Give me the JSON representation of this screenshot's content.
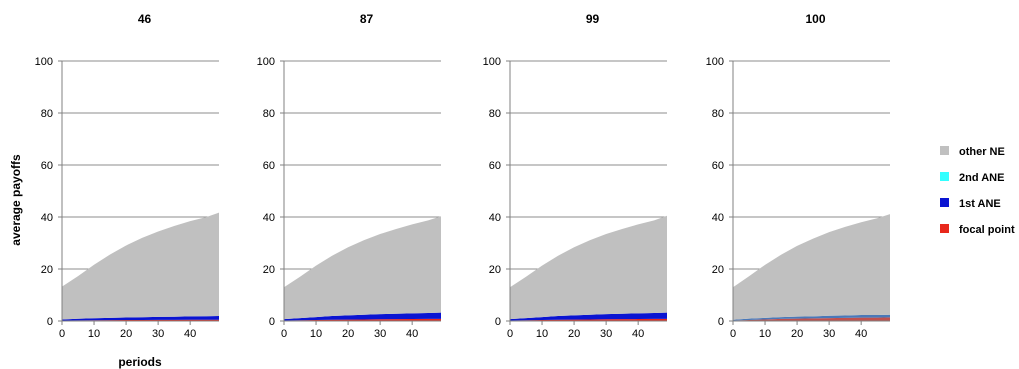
{
  "chart_data": [
    {
      "type": "area",
      "title": "46",
      "stacked": true,
      "x": [
        0,
        5,
        10,
        15,
        20,
        25,
        30,
        35,
        40,
        45,
        49
      ],
      "xticks": [
        "0",
        "10",
        "20",
        "30",
        "40"
      ],
      "yticks": [
        "0",
        "20",
        "40",
        "60",
        "80",
        "100"
      ],
      "ylim": [
        0,
        100
      ],
      "xlim": [
        0,
        49
      ],
      "grid": true,
      "series": [
        {
          "name": "focal point",
          "color": "#e8281c",
          "values": [
            0.2,
            0.25,
            0.3,
            0.35,
            0.4,
            0.4,
            0.45,
            0.45,
            0.5,
            0.5,
            0.5
          ]
        },
        {
          "name": "1st ANE",
          "color": "#0a14d2",
          "values": [
            0.4,
            0.6,
            0.75,
            0.85,
            0.95,
            1.05,
            1.15,
            1.2,
            1.3,
            1.35,
            1.4
          ]
        },
        {
          "name": "2nd ANE",
          "color": "#33ffff",
          "values": [
            0,
            0,
            0,
            0,
            0,
            0,
            0,
            0,
            0,
            0,
            0
          ]
        },
        {
          "name": "other NE",
          "color": "#c0c0c0",
          "values": [
            12.6,
            16.4,
            20.6,
            24.4,
            27.7,
            30.5,
            32.8,
            34.9,
            36.6,
            38.1,
            39.8
          ]
        }
      ]
    },
    {
      "type": "area",
      "title": "87",
      "stacked": true,
      "x": [
        0,
        5,
        10,
        15,
        20,
        25,
        30,
        35,
        40,
        45,
        49
      ],
      "xticks": [
        "0",
        "10",
        "20",
        "30",
        "40"
      ],
      "yticks": [
        "0",
        "20",
        "40",
        "60",
        "80",
        "100"
      ],
      "ylim": [
        0,
        100
      ],
      "xlim": [
        0,
        49
      ],
      "grid": true,
      "series": [
        {
          "name": "focal point",
          "color": "#e8281c",
          "values": [
            0.2,
            0.3,
            0.4,
            0.5,
            0.55,
            0.6,
            0.65,
            0.7,
            0.75,
            0.8,
            0.8
          ]
        },
        {
          "name": "1st ANE",
          "color": "#0a14d2",
          "values": [
            0.5,
            0.8,
            1.1,
            1.4,
            1.6,
            1.8,
            2.0,
            2.1,
            2.2,
            2.3,
            2.4
          ]
        },
        {
          "name": "2nd ANE",
          "color": "#33ffff",
          "values": [
            0,
            0,
            0,
            0,
            0,
            0,
            0,
            0,
            0,
            0,
            0
          ]
        },
        {
          "name": "other NE",
          "color": "#c0c0c0",
          "values": [
            12.3,
            15.9,
            19.8,
            23.2,
            26.2,
            28.7,
            30.8,
            32.6,
            34.2,
            35.6,
            37.1
          ]
        }
      ]
    },
    {
      "type": "area",
      "title": "99",
      "stacked": true,
      "x": [
        0,
        5,
        10,
        15,
        20,
        25,
        30,
        35,
        40,
        45,
        49
      ],
      "xticks": [
        "0",
        "10",
        "20",
        "30",
        "40"
      ],
      "yticks": [
        "0",
        "20",
        "40",
        "60",
        "80",
        "100"
      ],
      "ylim": [
        0,
        100
      ],
      "xlim": [
        0,
        49
      ],
      "grid": true,
      "series": [
        {
          "name": "focal point",
          "color": "#e8281c",
          "values": [
            0.2,
            0.3,
            0.4,
            0.5,
            0.55,
            0.6,
            0.65,
            0.7,
            0.75,
            0.8,
            0.8
          ]
        },
        {
          "name": "1st ANE",
          "color": "#0a14d2",
          "values": [
            0.5,
            0.8,
            1.1,
            1.4,
            1.6,
            1.8,
            2.0,
            2.1,
            2.2,
            2.3,
            2.4
          ]
        },
        {
          "name": "2nd ANE",
          "color": "#33ffff",
          "values": [
            0,
            0,
            0,
            0,
            0,
            0,
            0,
            0,
            0,
            0,
            0
          ]
        },
        {
          "name": "other NE",
          "color": "#c0c0c0",
          "values": [
            12.3,
            15.9,
            19.8,
            23.2,
            26.2,
            28.7,
            30.8,
            32.6,
            34.2,
            35.6,
            37.3
          ]
        }
      ]
    },
    {
      "type": "area",
      "title": "100",
      "stacked": true,
      "x": [
        0,
        5,
        10,
        15,
        20,
        25,
        30,
        35,
        40,
        45,
        49
      ],
      "xticks": [
        "0",
        "10",
        "20",
        "30",
        "40"
      ],
      "yticks": [
        "0",
        "20",
        "40",
        "60",
        "80",
        "100"
      ],
      "ylim": [
        0,
        100
      ],
      "xlim": [
        0,
        49
      ],
      "grid": true,
      "series": [
        {
          "name": "focal point",
          "color": "#e8281c",
          "values": [
            0.2,
            0.4,
            0.6,
            0.8,
            0.9,
            1.0,
            1.1,
            1.2,
            1.3,
            1.3,
            1.4
          ]
        },
        {
          "name": "1st ANE",
          "color": "#0a14d2",
          "values": [
            0.3,
            0.5,
            0.6,
            0.7,
            0.8,
            0.8,
            0.9,
            0.9,
            1.0,
            1.0,
            1.0
          ]
        },
        {
          "name": "2nd ANE",
          "color": "#33ffff",
          "values": [
            0,
            0,
            0,
            0,
            0,
            0,
            0,
            0,
            0,
            0,
            0
          ]
        },
        {
          "name": "other NE",
          "color": "#c0c0c0",
          "values": [
            12.5,
            16.3,
            20.4,
            24.0,
            27.2,
            29.9,
            32.2,
            34.1,
            35.7,
            37.2,
            38.7
          ]
        }
      ]
    }
  ],
  "y_axis_label": "average payoffs",
  "x_axis_label": "periods",
  "legend": {
    "placement": "right",
    "items": [
      {
        "label": "other NE",
        "color": "#c0c0c0"
      },
      {
        "label": "2nd ANE",
        "color": "#33ffff"
      },
      {
        "label": "1st ANE",
        "color": "#0a14d2"
      },
      {
        "label": "focal point",
        "color": "#e8281c"
      }
    ]
  },
  "overlay_color_panel4": "#c0504d"
}
